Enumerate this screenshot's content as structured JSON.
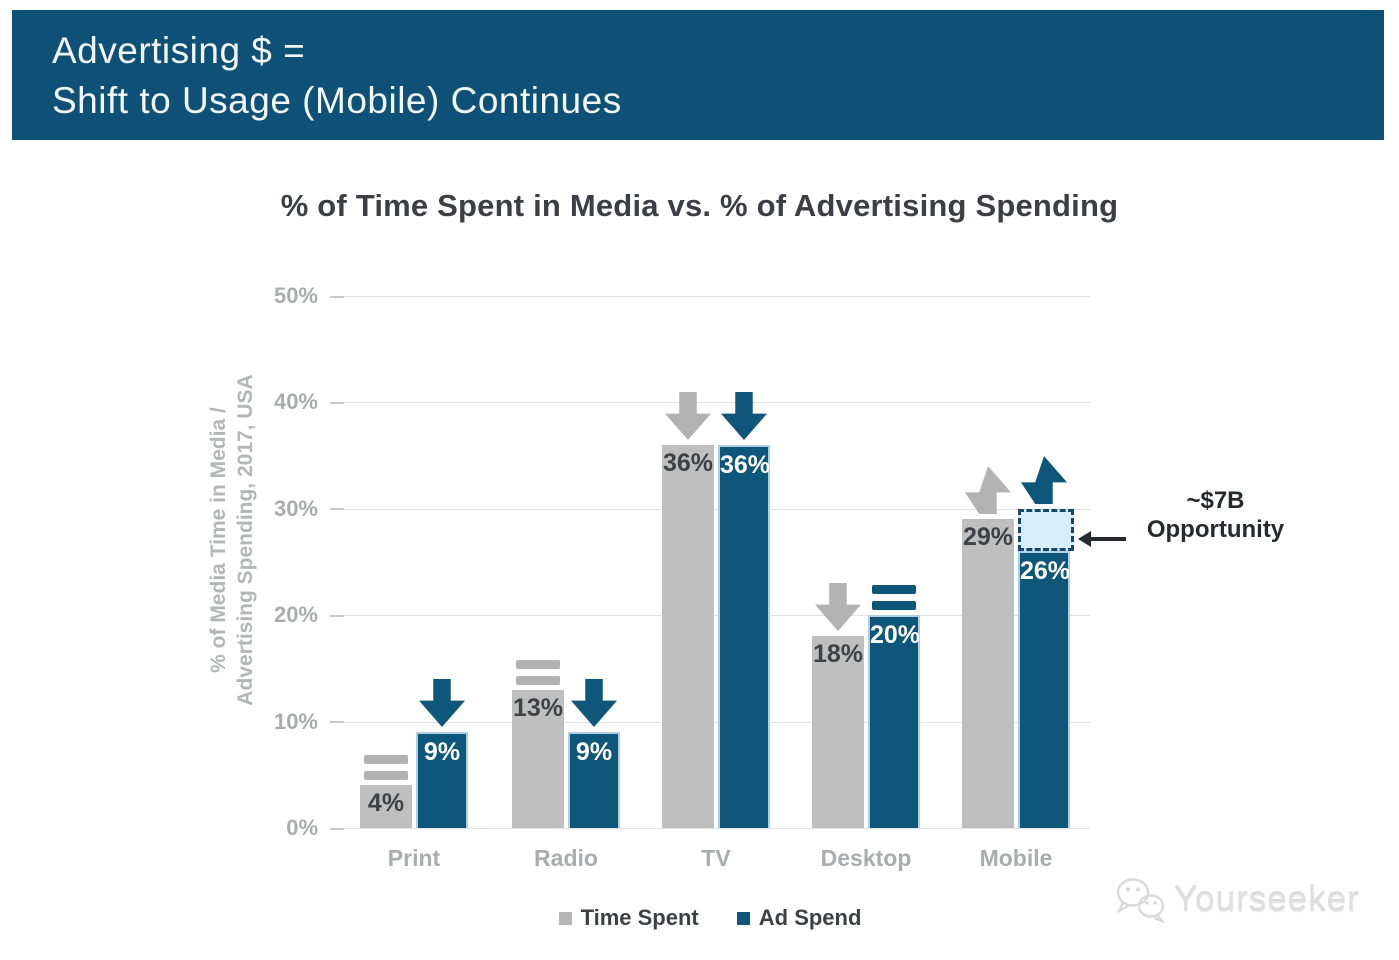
{
  "banner": {
    "line1": "Advertising $ =",
    "line2": "Shift to Usage (Mobile) Continues",
    "bg_color": "#0f5176"
  },
  "chart_data": {
    "type": "bar",
    "title": "% of Time Spent in Media vs. % of Advertising Spending",
    "ylabel_line1": "% of Media Time in Media /",
    "ylabel_line2": "Advertising Spending, 2017, USA",
    "categories": [
      "Print",
      "Radio",
      "TV",
      "Desktop",
      "Mobile"
    ],
    "series": [
      {
        "name": "Time Spent",
        "color": "#bfbfbf",
        "indicator_color": "#b2b2b2",
        "values": [
          4,
          13,
          36,
          18,
          29
        ],
        "trends": [
          "flat",
          "flat",
          "down",
          "down",
          "up"
        ]
      },
      {
        "name": "Ad Spend",
        "color": "#0e567a",
        "indicator_color": "#0e567a",
        "values": [
          9,
          9,
          36,
          20,
          26
        ],
        "trends": [
          "down",
          "down",
          "down",
          "flat",
          "up"
        ]
      }
    ],
    "value_suffix": "%",
    "yticks": [
      {
        "label": "0%",
        "value": 0
      },
      {
        "label": "10%",
        "value": 10
      },
      {
        "label": "20%",
        "value": 20
      },
      {
        "label": "30%",
        "value": 30
      },
      {
        "label": "40%",
        "value": 40
      },
      {
        "label": "50%",
        "value": 50
      }
    ],
    "ylim": [
      0,
      50
    ],
    "grid": true,
    "legend_position": "bottom",
    "opportunity_box": {
      "category": "Mobile",
      "series": "Ad Spend",
      "from_value": 26,
      "to_value": 30,
      "fill": "#d8edf9",
      "border": "#16486d"
    },
    "annotation": {
      "line1": "~$7B",
      "line2": "Opportunity"
    }
  },
  "watermark": {
    "text": "Yourseeker"
  }
}
